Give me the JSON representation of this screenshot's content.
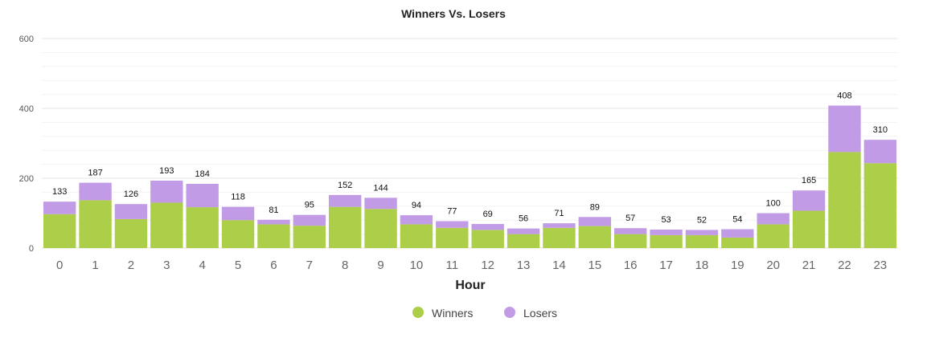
{
  "chart_data": {
    "type": "bar",
    "stacked": true,
    "title": "Winners Vs. Losers",
    "xlabel": "Hour",
    "ylabel": "",
    "ylim": [
      0,
      600
    ],
    "yticks": [
      0,
      200,
      400,
      600
    ],
    "grid": true,
    "legend_position": "bottom-center",
    "categories": [
      "0",
      "1",
      "2",
      "3",
      "4",
      "5",
      "6",
      "7",
      "8",
      "9",
      "10",
      "11",
      "12",
      "13",
      "14",
      "15",
      "16",
      "17",
      "18",
      "19",
      "20",
      "21",
      "22",
      "23"
    ],
    "series": [
      {
        "name": "Winners",
        "color": "#acce48",
        "values": [
          97,
          137,
          83,
          130,
          117,
          80,
          68,
          64,
          118,
          112,
          68,
          58,
          52,
          40,
          58,
          63,
          40,
          37,
          37,
          30,
          68,
          107,
          275,
          243
        ]
      },
      {
        "name": "Losers",
        "color": "#c29be6",
        "values": [
          36,
          50,
          43,
          63,
          67,
          38,
          13,
          31,
          34,
          32,
          26,
          19,
          17,
          16,
          13,
          26,
          17,
          16,
          15,
          24,
          32,
          58,
          133,
          67
        ]
      }
    ],
    "totals": [
      133,
      187,
      126,
      193,
      184,
      118,
      81,
      95,
      152,
      144,
      94,
      77,
      69,
      56,
      71,
      89,
      57,
      53,
      52,
      54,
      100,
      165,
      408,
      310
    ]
  }
}
